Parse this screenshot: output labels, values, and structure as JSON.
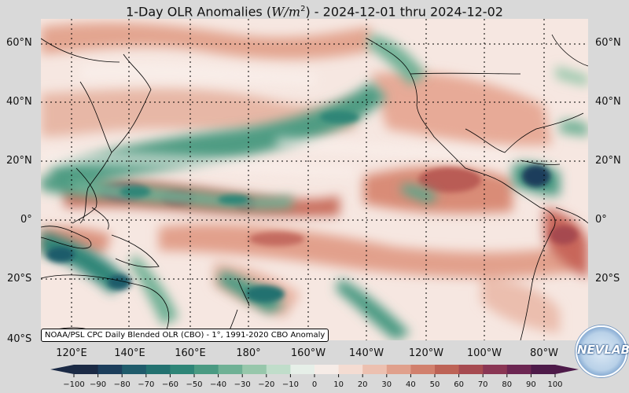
{
  "title": {
    "prefix": "1-Day OLR Anomalies (",
    "unit_italic": "W/m",
    "unit_sup": "2",
    "suffix": ") - 2024-12-01 thru 2024-12-02"
  },
  "lat_labels": [
    "60°N",
    "40°N",
    "20°N",
    "0°",
    "20°S",
    "40°S"
  ],
  "lon_labels": [
    "120°E",
    "140°E",
    "160°E",
    "180°",
    "160°W",
    "140°W",
    "120°W",
    "100°W",
    "80°W"
  ],
  "source_note": "NOAA/PSL CPC Daily Blended OLR (CBO) - 1°, 1991-2020 CBO Anomaly",
  "colorbar": {
    "ticks": [
      "−100",
      "−90",
      "−80",
      "−70",
      "−60",
      "−50",
      "−40",
      "−30",
      "−20",
      "−10",
      "0",
      "10",
      "20",
      "30",
      "40",
      "50",
      "60",
      "70",
      "80",
      "90",
      "100"
    ],
    "colors": [
      "#1b2a45",
      "#1c3e5c",
      "#1f5b6b",
      "#237170",
      "#2e8577",
      "#4a9a82",
      "#6fb195",
      "#97c7ab",
      "#c0ddca",
      "#e6efe8",
      "#f6ece7",
      "#f4dcd2",
      "#ecc0b0",
      "#e0a08c",
      "#d1806d",
      "#bd6356",
      "#a64a50",
      "#8a3654",
      "#6c2652",
      "#4d1a49"
    ]
  },
  "logo_text": "NEVLAB",
  "colors": {
    "neutral": "#f6e7e1",
    "positive": "#d1806d",
    "positive_strong": "#a64a50",
    "negative": "#4a9a82",
    "negative_strong": "#1f5b6b"
  }
}
